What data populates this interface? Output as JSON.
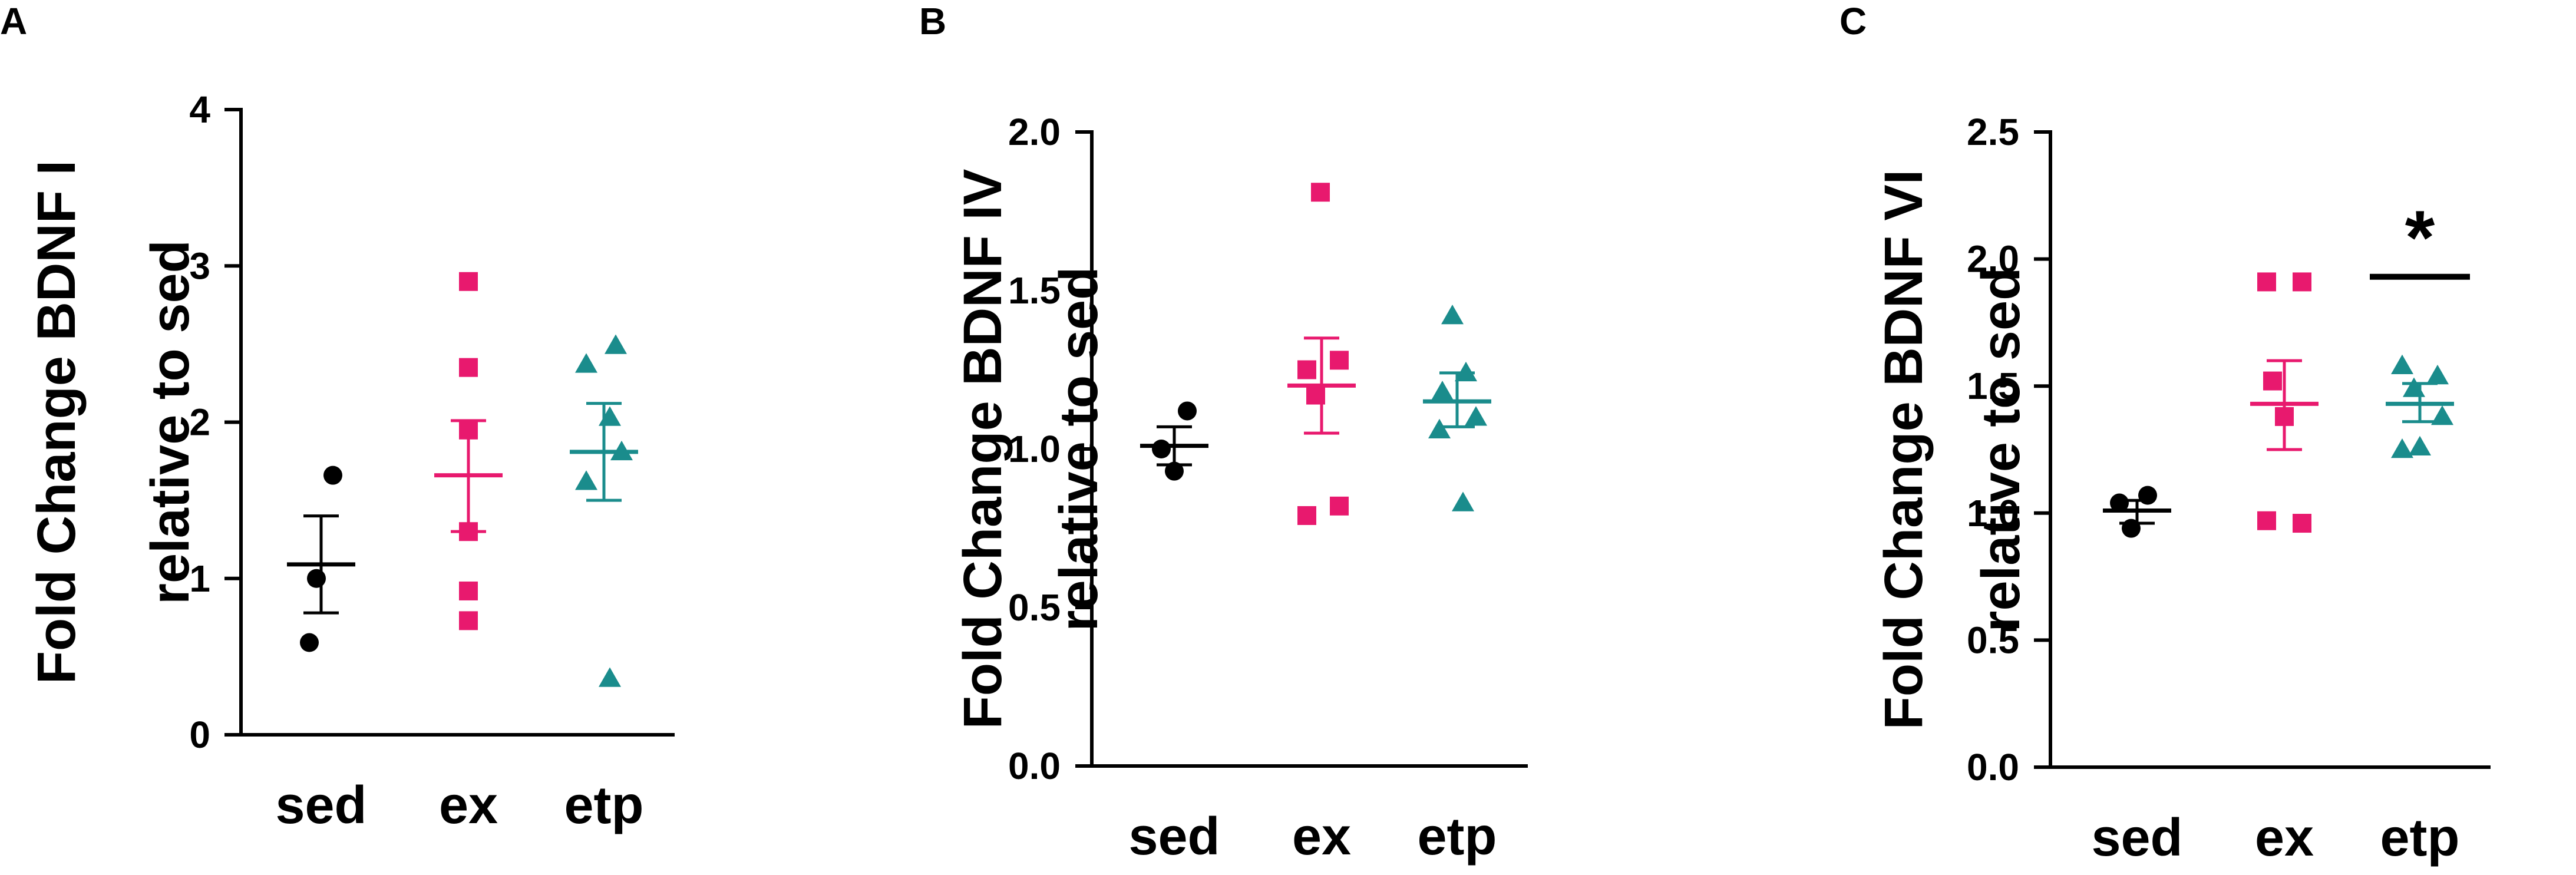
{
  "chart_data": [
    {
      "panel": "A",
      "type": "scatter",
      "title": "",
      "ylabel": [
        "Fold Change BDNF I",
        "relative to sed"
      ],
      "xlabel": "",
      "categories": [
        "sed",
        "ex",
        "etp"
      ],
      "ylim": [
        0,
        4
      ],
      "yticks": [
        "0",
        "1",
        "2",
        "3",
        "4"
      ],
      "colors": [
        "#000000",
        "#e8196e",
        "#1a8c8c"
      ],
      "markers": [
        "circle",
        "square",
        "triangle"
      ],
      "groups": [
        {
          "category": "sed",
          "points": [
            1.66,
            1.0,
            0.59
          ],
          "mean": 1.09,
          "sem_low": 0.78,
          "sem_high": 1.4
        },
        {
          "category": "ex",
          "points": [
            2.9,
            2.35,
            1.95,
            1.3,
            0.92,
            0.73
          ],
          "mean": 1.66,
          "sem_low": 1.3,
          "sem_high": 2.01
        },
        {
          "category": "etp",
          "points": [
            2.49,
            2.37,
            2.03,
            1.81,
            1.62,
            0.36
          ],
          "mean": 1.81,
          "sem_low": 1.5,
          "sem_high": 2.12
        }
      ],
      "significance": null
    },
    {
      "panel": "B",
      "type": "scatter",
      "title": "",
      "ylabel": [
        "Fold Change BDNF IV",
        "relative to sed"
      ],
      "xlabel": "",
      "categories": [
        "sed",
        "ex",
        "etp"
      ],
      "ylim": [
        0,
        2
      ],
      "yticks": [
        "0.0",
        "0.5",
        "1.0",
        "1.5",
        "2.0"
      ],
      "colors": [
        "#000000",
        "#e8196e",
        "#1a8c8c"
      ],
      "markers": [
        "circle",
        "square",
        "triangle"
      ],
      "groups": [
        {
          "category": "sed",
          "points": [
            1.12,
            1.0,
            0.93
          ],
          "mean": 1.01,
          "sem_low": 0.95,
          "sem_high": 1.07
        },
        {
          "category": "ex",
          "points": [
            1.81,
            1.28,
            1.25,
            1.17,
            0.82,
            0.79
          ],
          "mean": 1.2,
          "sem_low": 1.05,
          "sem_high": 1.35
        },
        {
          "category": "etp",
          "points": [
            1.42,
            1.24,
            1.18,
            1.1,
            1.06,
            0.83
          ],
          "mean": 1.15,
          "sem_low": 1.07,
          "sem_high": 1.24
        }
      ],
      "significance": null
    },
    {
      "panel": "C",
      "type": "scatter",
      "title": "",
      "ylabel": [
        "Fold Change BDNF VI",
        "relative to sed"
      ],
      "xlabel": "",
      "categories": [
        "sed",
        "ex",
        "etp"
      ],
      "ylim": [
        0,
        2.5
      ],
      "yticks": [
        "0.0",
        "0.5",
        "1.0",
        "1.5",
        "2.0",
        "2.5"
      ],
      "colors": [
        "#000000",
        "#e8196e",
        "#1a8c8c"
      ],
      "markers": [
        "circle",
        "square",
        "triangle"
      ],
      "groups": [
        {
          "category": "sed",
          "points": [
            1.07,
            1.04,
            0.94
          ],
          "mean": 1.01,
          "sem_low": 0.96,
          "sem_high": 1.05
        },
        {
          "category": "ex",
          "points": [
            1.91,
            1.91,
            1.52,
            1.38,
            0.97,
            0.96
          ],
          "mean": 1.43,
          "sem_low": 1.25,
          "sem_high": 1.6
        },
        {
          "category": "etp",
          "points": [
            1.58,
            1.54,
            1.49,
            1.38,
            1.26,
            1.25
          ],
          "mean": 1.43,
          "sem_low": 1.36,
          "sem_high": 1.51
        }
      ],
      "significance": {
        "category": "etp",
        "label": "*",
        "y": 1.93
      }
    }
  ]
}
